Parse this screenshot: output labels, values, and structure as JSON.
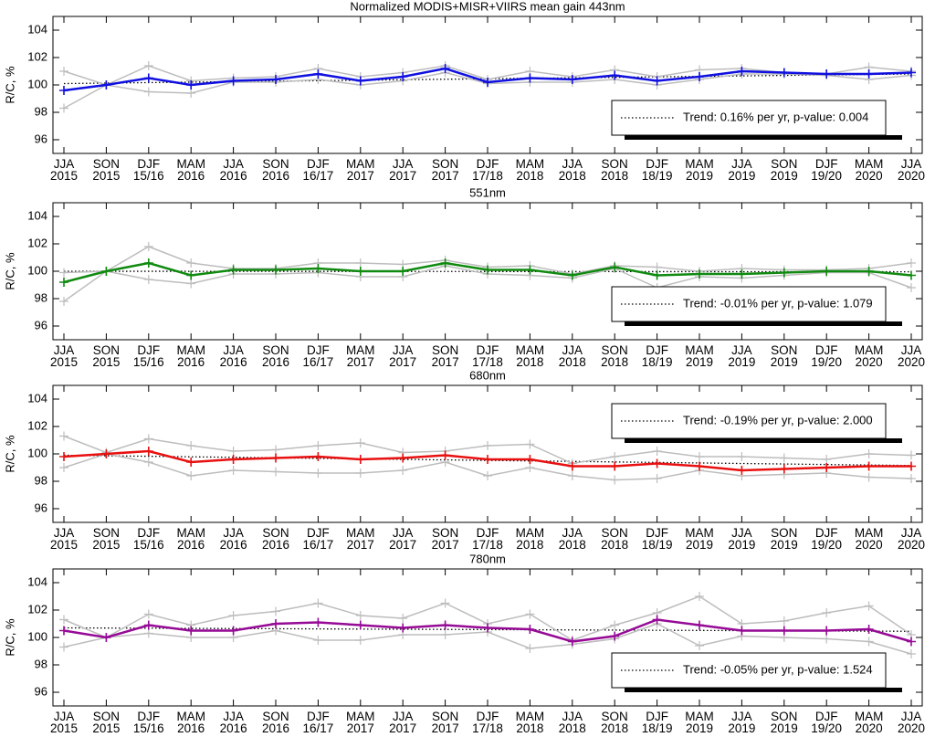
{
  "chart_data": [
    {
      "type": "line",
      "title": "Normalized MODIS+MISR+VIIRS mean gain 443nm",
      "ylabel": "R/C, %",
      "categories": [
        "JJA\n2015",
        "SON\n2015",
        "DJF\n15/16",
        "MAM\n2016",
        "JJA\n2016",
        "SON\n2016",
        "DJF\n16/17",
        "MAM\n2017",
        "JJA\n2017",
        "SON\n2017",
        "DJF\n17/18",
        "MAM\n2018",
        "JJA\n2018",
        "SON\n2018",
        "DJF\n18/19",
        "MAM\n2019",
        "JJA\n2019",
        "SON\n2019",
        "DJF\n19/20",
        "MAM\n2020",
        "JJA\n2020"
      ],
      "series": [
        {
          "color": "#bdbdbd",
          "values": [
            101.0,
            100.0,
            101.4,
            100.3,
            100.5,
            100.6,
            101.2,
            100.6,
            100.9,
            101.4,
            100.4,
            101.0,
            100.6,
            101.1,
            100.6,
            101.1,
            101.2,
            100.9,
            100.8,
            101.3,
            101.0
          ]
        },
        {
          "color": "#bdbdbd",
          "values": [
            98.3,
            100.0,
            99.5,
            99.4,
            100.2,
            100.2,
            100.4,
            100.0,
            100.3,
            100.9,
            100.1,
            100.2,
            100.2,
            100.4,
            100.0,
            100.4,
            100.8,
            100.8,
            100.7,
            100.4,
            100.7
          ]
        },
        {
          "color": "#1010e0",
          "values": [
            99.6,
            100.0,
            100.5,
            100.0,
            100.3,
            100.4,
            100.8,
            100.3,
            100.6,
            101.2,
            100.2,
            100.5,
            100.4,
            100.7,
            100.3,
            100.6,
            101.0,
            100.9,
            100.8,
            100.8,
            100.9
          ]
        }
      ],
      "trend": {
        "start": 100.1,
        "end": 100.8,
        "label": "Trend:  0.16% per yr, p-value:  0.004"
      },
      "legend": "lower right",
      "ylim": [
        95,
        105
      ],
      "yticks": [
        96,
        98,
        100,
        102,
        104
      ]
    },
    {
      "type": "line",
      "title": "551nm",
      "ylabel": "R/C, %",
      "categories": [
        "JJA\n2015",
        "SON\n2015",
        "DJF\n15/16",
        "MAM\n2016",
        "JJA\n2016",
        "SON\n2016",
        "DJF\n16/17",
        "MAM\n2017",
        "JJA\n2017",
        "SON\n2017",
        "DJF\n17/18",
        "MAM\n2018",
        "JJA\n2018",
        "SON\n2018",
        "DJF\n18/19",
        "MAM\n2019",
        "JJA\n2019",
        "SON\n2019",
        "DJF\n19/20",
        "MAM\n2020",
        "JJA\n2020"
      ],
      "series": [
        {
          "color": "#bdbdbd",
          "values": [
            99.9,
            100.0,
            101.8,
            100.6,
            100.2,
            100.2,
            100.6,
            100.6,
            100.5,
            100.8,
            100.3,
            100.4,
            99.8,
            100.4,
            100.3,
            100.0,
            100.2,
            100.1,
            100.1,
            100.2,
            100.6
          ]
        },
        {
          "color": "#bdbdbd",
          "values": [
            97.8,
            100.0,
            99.4,
            99.1,
            99.8,
            99.8,
            99.9,
            99.6,
            99.6,
            100.4,
            99.8,
            99.7,
            99.5,
            100.2,
            98.8,
            99.6,
            99.5,
            99.7,
            99.9,
            99.9,
            98.8
          ]
        },
        {
          "color": "#108a10",
          "values": [
            99.2,
            100.0,
            100.6,
            99.7,
            100.1,
            100.1,
            100.2,
            100.0,
            100.0,
            100.6,
            100.1,
            100.1,
            99.7,
            100.3,
            99.7,
            99.8,
            99.8,
            99.9,
            100.0,
            100.0,
            99.7
          ]
        }
      ],
      "trend": {
        "start": 100.0,
        "end": 99.96,
        "label": "Trend: -0.01% per yr, p-value:  1.079"
      },
      "legend": "lower right",
      "ylim": [
        95,
        105
      ],
      "yticks": [
        96,
        98,
        100,
        102,
        104
      ]
    },
    {
      "type": "line",
      "title": "680nm",
      "ylabel": "R/C, %",
      "categories": [
        "JJA\n2015",
        "SON\n2015",
        "DJF\n15/16",
        "MAM\n2016",
        "JJA\n2016",
        "SON\n2016",
        "DJF\n16/17",
        "MAM\n2017",
        "JJA\n2017",
        "SON\n2017",
        "DJF\n17/18",
        "MAM\n2018",
        "JJA\n2018",
        "SON\n2018",
        "DJF\n18/19",
        "MAM\n2019",
        "JJA\n2019",
        "SON\n2019",
        "DJF\n19/20",
        "MAM\n2020",
        "JJA\n2020"
      ],
      "series": [
        {
          "color": "#bdbdbd",
          "values": [
            101.3,
            100.1,
            101.1,
            100.6,
            100.2,
            100.3,
            100.6,
            100.8,
            100.1,
            100.2,
            100.6,
            100.7,
            99.3,
            99.8,
            100.2,
            99.8,
            99.8,
            99.7,
            99.6,
            100.0,
            99.9
          ]
        },
        {
          "color": "#bdbdbd",
          "values": [
            99.0,
            100.0,
            99.4,
            98.4,
            98.8,
            98.7,
            98.6,
            98.6,
            98.8,
            99.4,
            98.4,
            99.0,
            98.4,
            98.1,
            98.2,
            98.8,
            98.4,
            98.5,
            98.6,
            98.3,
            98.2
          ]
        },
        {
          "color": "#e81010",
          "values": [
            99.8,
            100.0,
            100.2,
            99.4,
            99.6,
            99.7,
            99.8,
            99.6,
            99.7,
            99.9,
            99.6,
            99.6,
            99.1,
            99.1,
            99.3,
            99.1,
            98.8,
            98.9,
            99.0,
            99.1,
            99.1
          ]
        }
      ],
      "trend": {
        "start": 99.9,
        "end": 99.15,
        "label": "Trend: -0.19% per yr, p-value:  2.000"
      },
      "legend": "upper right",
      "ylim": [
        95,
        105
      ],
      "yticks": [
        96,
        98,
        100,
        102,
        104
      ]
    },
    {
      "type": "line",
      "title": "780nm",
      "ylabel": "R/C, %",
      "categories": [
        "JJA\n2015",
        "SON\n2015",
        "DJF\n15/16",
        "MAM\n2016",
        "JJA\n2016",
        "SON\n2016",
        "DJF\n16/17",
        "MAM\n2017",
        "JJA\n2017",
        "SON\n2017",
        "DJF\n17/18",
        "MAM\n2018",
        "JJA\n2018",
        "SON\n2018",
        "DJF\n18/19",
        "MAM\n2019",
        "JJA\n2019",
        "SON\n2019",
        "DJF\n19/20",
        "MAM\n2020",
        "JJA\n2020"
      ],
      "series": [
        {
          "color": "#bdbdbd",
          "values": [
            101.3,
            100.0,
            101.7,
            100.9,
            101.6,
            101.9,
            102.5,
            101.6,
            101.4,
            102.5,
            101.0,
            101.7,
            99.8,
            100.9,
            101.8,
            103.0,
            101.0,
            101.2,
            101.8,
            102.3,
            100.2
          ]
        },
        {
          "color": "#bdbdbd",
          "values": [
            99.3,
            100.0,
            100.3,
            100.0,
            100.0,
            100.5,
            99.8,
            99.8,
            100.2,
            100.2,
            100.4,
            99.2,
            99.5,
            99.9,
            101.0,
            99.4,
            100.1,
            100.0,
            99.9,
            99.7,
            98.8
          ]
        },
        {
          "color": "#960a96",
          "values": [
            100.5,
            100.0,
            100.9,
            100.5,
            100.5,
            101.0,
            101.1,
            100.9,
            100.7,
            100.9,
            100.7,
            100.6,
            99.7,
            100.1,
            101.3,
            100.9,
            100.5,
            100.5,
            100.5,
            100.6,
            99.7
          ]
        }
      ],
      "trend": {
        "start": 100.7,
        "end": 100.45,
        "label": "Trend: -0.05% per yr, p-value:  1.524"
      },
      "legend": "lower right",
      "ylim": [
        95,
        105
      ],
      "yticks": [
        96,
        98,
        100,
        102,
        104
      ]
    }
  ]
}
